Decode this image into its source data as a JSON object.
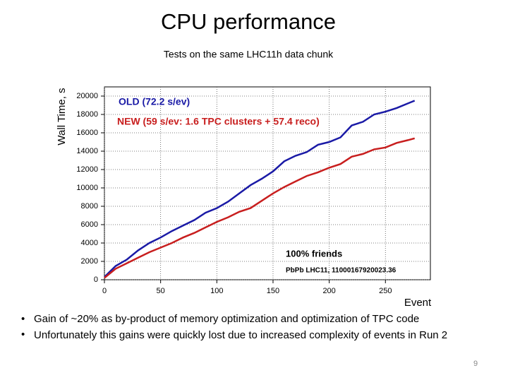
{
  "title": "CPU performance",
  "subtitle": "Tests on the same LHC11h data chunk",
  "chart_data": {
    "type": "line",
    "ylabel": "Wall Time, s",
    "xlabel": "Event",
    "x": [
      0,
      10,
      20,
      30,
      40,
      50,
      60,
      70,
      80,
      90,
      100,
      110,
      120,
      130,
      140,
      150,
      160,
      170,
      180,
      190,
      200,
      210,
      220,
      230,
      240,
      250,
      260,
      270,
      276
    ],
    "series": [
      {
        "name": "OLD (72.2 s/ev)",
        "color": "#1a1aa6",
        "values": [
          300,
          1500,
          2200,
          3200,
          4000,
          4600,
          5300,
          5900,
          6500,
          7300,
          7800,
          8500,
          9400,
          10300,
          11000,
          11800,
          12900,
          13500,
          13900,
          14700,
          15000,
          15500,
          16800,
          17200,
          18000,
          18300,
          18700,
          19200,
          19500
        ]
      },
      {
        "name": "NEW (59 s/ev: 1.6 TPC clusters + 57.4 reco)",
        "color": "#c81e1e",
        "values": [
          200,
          1200,
          1800,
          2400,
          3000,
          3500,
          4000,
          4600,
          5100,
          5700,
          6300,
          6800,
          7400,
          7800,
          8600,
          9400,
          10100,
          10700,
          11300,
          11700,
          12200,
          12600,
          13400,
          13700,
          14200,
          14400,
          14900,
          15200,
          15400
        ]
      }
    ],
    "xlim": [
      0,
      290
    ],
    "ylim": [
      0,
      21000
    ],
    "xticks": [
      0,
      50,
      100,
      150,
      200,
      250
    ],
    "yticks": [
      0,
      2000,
      4000,
      6000,
      8000,
      10000,
      12000,
      14000,
      16000,
      18000,
      20000
    ],
    "grid": true,
    "annotations": [
      "100% friends",
      "PbPb LHC11, 11000167920023.36"
    ]
  },
  "bullets": [
    "Gain of ~20% as by-product of memory optimization and optimization of TPC code",
    "Unfortunately this gains were quickly lost due to increased complexity of events in Run 2"
  ],
  "page_number": "9"
}
